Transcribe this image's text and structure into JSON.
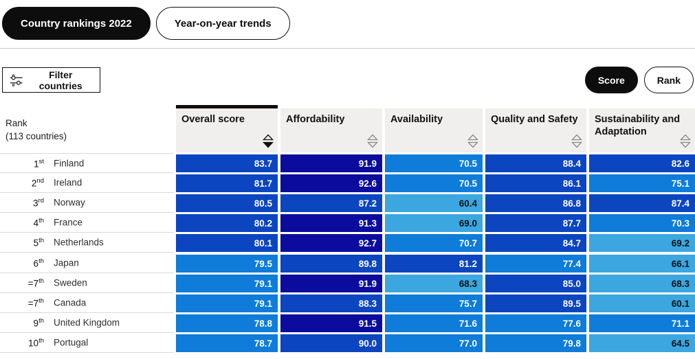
{
  "tabs": [
    {
      "label": "Country rankings 2022",
      "active": true
    },
    {
      "label": "Year-on-year trends",
      "active": false
    }
  ],
  "toolbar": {
    "filter_label": "Filter countries",
    "score_label": "Score",
    "rank_label": "Rank"
  },
  "table": {
    "rank_header_line1": "Rank",
    "rank_header_line2": "(113 countries)",
    "columns": [
      {
        "label": "Overall score",
        "sorted": "desc"
      },
      {
        "label": "Affordability",
        "sorted": "none"
      },
      {
        "label": "Availability",
        "sorted": "none"
      },
      {
        "label": "Quality and Safety",
        "sorted": "none"
      },
      {
        "label": "Sustainability and Adaptation",
        "sorted": "none"
      }
    ],
    "rows": [
      {
        "rank": "1",
        "ordinal": "st",
        "tie": "",
        "country": "Finland",
        "scores": [
          "83.7",
          "91.9",
          "70.5",
          "88.4",
          "82.6"
        ]
      },
      {
        "rank": "2",
        "ordinal": "nd",
        "tie": "",
        "country": "Ireland",
        "scores": [
          "81.7",
          "92.6",
          "70.5",
          "86.1",
          "75.1"
        ]
      },
      {
        "rank": "3",
        "ordinal": "rd",
        "tie": "",
        "country": "Norway",
        "scores": [
          "80.5",
          "87.2",
          "60.4",
          "86.8",
          "87.4"
        ]
      },
      {
        "rank": "4",
        "ordinal": "th",
        "tie": "",
        "country": "France",
        "scores": [
          "80.2",
          "91.3",
          "69.0",
          "87.7",
          "70.3"
        ]
      },
      {
        "rank": "5",
        "ordinal": "th",
        "tie": "",
        "country": "Netherlands",
        "scores": [
          "80.1",
          "92.7",
          "70.7",
          "84.7",
          "69.2"
        ]
      },
      {
        "rank": "6",
        "ordinal": "th",
        "tie": "",
        "country": "Japan",
        "scores": [
          "79.5",
          "89.8",
          "81.2",
          "77.4",
          "66.1"
        ]
      },
      {
        "rank": "7",
        "ordinal": "th",
        "tie": "=",
        "country": "Sweden",
        "scores": [
          "79.1",
          "91.9",
          "68.3",
          "85.0",
          "68.3"
        ]
      },
      {
        "rank": "7",
        "ordinal": "th",
        "tie": "=",
        "country": "Canada",
        "scores": [
          "79.1",
          "88.3",
          "75.7",
          "89.5",
          "60.1"
        ]
      },
      {
        "rank": "9",
        "ordinal": "th",
        "tie": "",
        "country": "United Kingdom",
        "scores": [
          "78.8",
          "91.5",
          "71.6",
          "77.6",
          "71.1"
        ]
      },
      {
        "rank": "10",
        "ordinal": "th",
        "tie": "",
        "country": "Portugal",
        "scores": [
          "78.7",
          "90.0",
          "77.0",
          "79.8",
          "64.5"
        ]
      }
    ]
  },
  "colors": {
    "band_above_90": "#0b0c9e",
    "band_80_90": "#0c45c0",
    "band_70_80": "#0e7cd8",
    "band_60_70": "#3ba6e0",
    "text_high": "#ffffff",
    "text_low": "#111111"
  }
}
